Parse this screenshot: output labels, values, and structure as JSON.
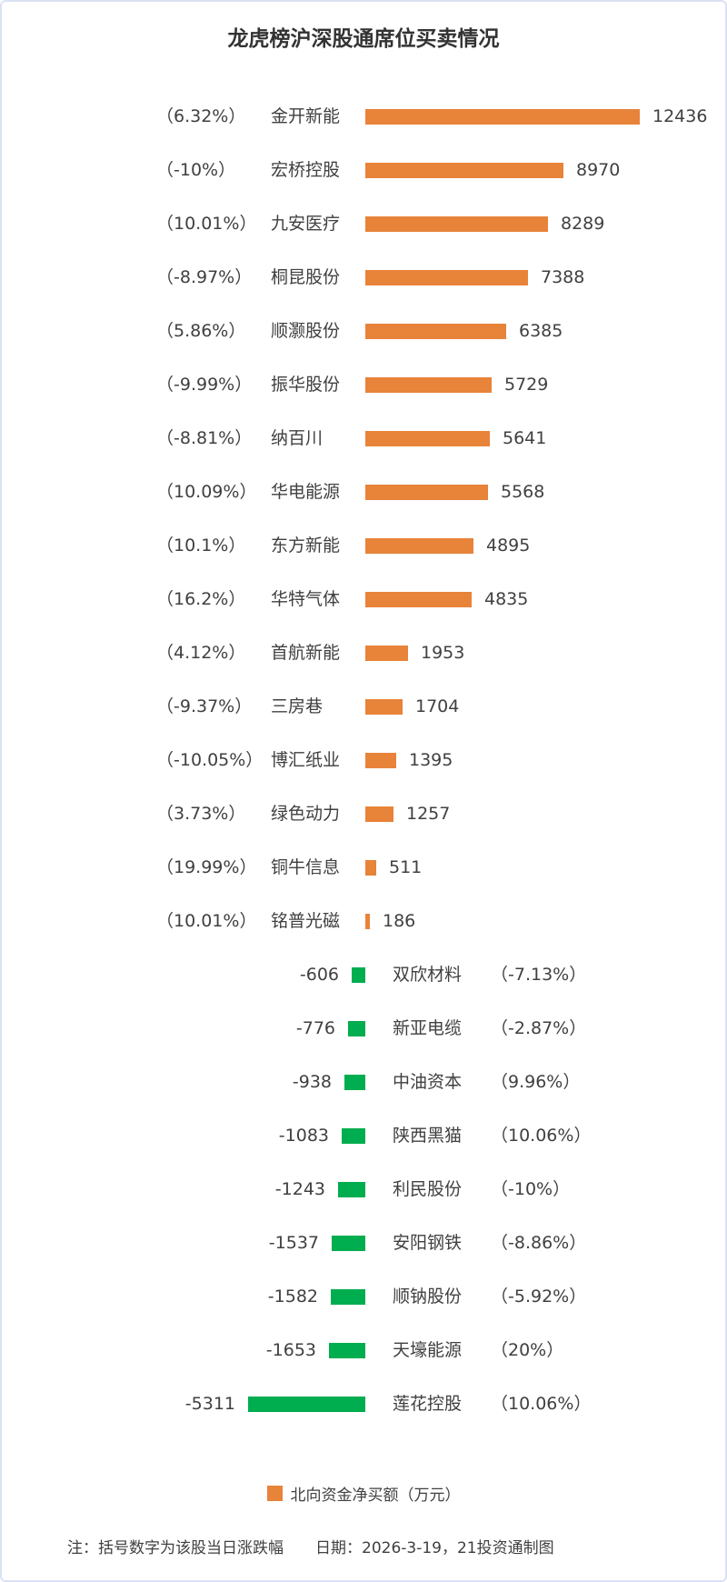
{
  "title": "龙虎榜沪深股通席位买卖情况",
  "colors": {
    "buy_bar": "#e8833a",
    "sell_bar": "#00ad4f",
    "text": "#404040",
    "border": "#dbe2f3"
  },
  "legend": {
    "label": "北向资金净买额（万元）",
    "swatch_color": "#e8833a"
  },
  "footer": {
    "note": "注：括号数字为该股当日涨跌幅",
    "date": "日期：2026-3-19，21投资通制图"
  },
  "chart_data": {
    "type": "bar",
    "orientation": "horizontal-diverging",
    "title": "龙虎榜沪深股通席位买卖情况",
    "value_label": "北向资金净买额（万元）",
    "unit": "万元",
    "baseline": 0,
    "max_abs_value": 12436,
    "axis_visible": false,
    "grid": false,
    "legend_position": "bottom-center",
    "rows": [
      {
        "name": "金开新能",
        "pct": "（6.32%）",
        "value": 12436
      },
      {
        "name": "宏桥控股",
        "pct": "（-10%）",
        "value": 8970
      },
      {
        "name": "九安医疗",
        "pct": "（10.01%）",
        "value": 8289
      },
      {
        "name": "桐昆股份",
        "pct": "（-8.97%）",
        "value": 7388
      },
      {
        "name": "顺灏股份",
        "pct": "（5.86%）",
        "value": 6385
      },
      {
        "name": "振华股份",
        "pct": "（-9.99%）",
        "value": 5729
      },
      {
        "name": "纳百川",
        "pct": "（-8.81%）",
        "value": 5641
      },
      {
        "name": "华电能源",
        "pct": "（10.09%）",
        "value": 5568
      },
      {
        "name": "东方新能",
        "pct": "（10.1%）",
        "value": 4895
      },
      {
        "name": "华特气体",
        "pct": "（16.2%）",
        "value": 4835
      },
      {
        "name": "首航新能",
        "pct": "（4.12%）",
        "value": 1953
      },
      {
        "name": "三房巷",
        "pct": "（-9.37%）",
        "value": 1704
      },
      {
        "name": "博汇纸业",
        "pct": "（-10.05%）",
        "value": 1395
      },
      {
        "name": "绿色动力",
        "pct": "（3.73%）",
        "value": 1257
      },
      {
        "name": "铜牛信息",
        "pct": "（19.99%）",
        "value": 511
      },
      {
        "name": "铭普光磁",
        "pct": "（10.01%）",
        "value": 186
      },
      {
        "name": "双欣材料",
        "pct": "（-7.13%）",
        "value": -606
      },
      {
        "name": "新亚电缆",
        "pct": "（-2.87%）",
        "value": -776
      },
      {
        "name": "中油资本",
        "pct": "（9.96%）",
        "value": -938
      },
      {
        "name": "陕西黑猫",
        "pct": "（10.06%）",
        "value": -1083
      },
      {
        "name": "利民股份",
        "pct": "（-10%）",
        "value": -1243
      },
      {
        "name": "安阳钢铁",
        "pct": "（-8.86%）",
        "value": -1537
      },
      {
        "name": "顺钠股份",
        "pct": "（-5.92%）",
        "value": -1582
      },
      {
        "name": "天壕能源",
        "pct": "（20%）",
        "value": -1653
      },
      {
        "name": "莲花控股",
        "pct": "（10.06%）",
        "value": -5311
      }
    ]
  }
}
